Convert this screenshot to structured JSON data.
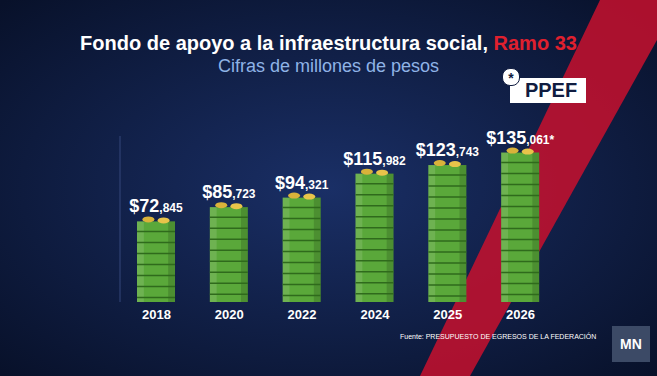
{
  "chart_data": {
    "type": "bar",
    "title": "Fondo de apoyo a la infraestructura social, Ramo 33",
    "subtitle": "Cifras de millones de pesos",
    "categories": [
      "2018",
      "2020",
      "2022",
      "2024",
      "2025",
      "2026"
    ],
    "values": [
      72845,
      85723,
      94321,
      115982,
      123743,
      135061
    ],
    "value_labels": [
      "$72,845",
      "$85,723",
      "$94,321",
      "$115,982",
      "$123,743",
      "$135,061*"
    ],
    "color": "#5aa83a",
    "ylim": [
      0,
      150000
    ],
    "data_labels": true,
    "tick_labels": "x",
    "annotations": [
      "*",
      "PPEF",
      "Fuente: PRESUPUESTO DE EGRESOS DE LA FEDERACIÓN",
      "MN"
    ]
  }
}
